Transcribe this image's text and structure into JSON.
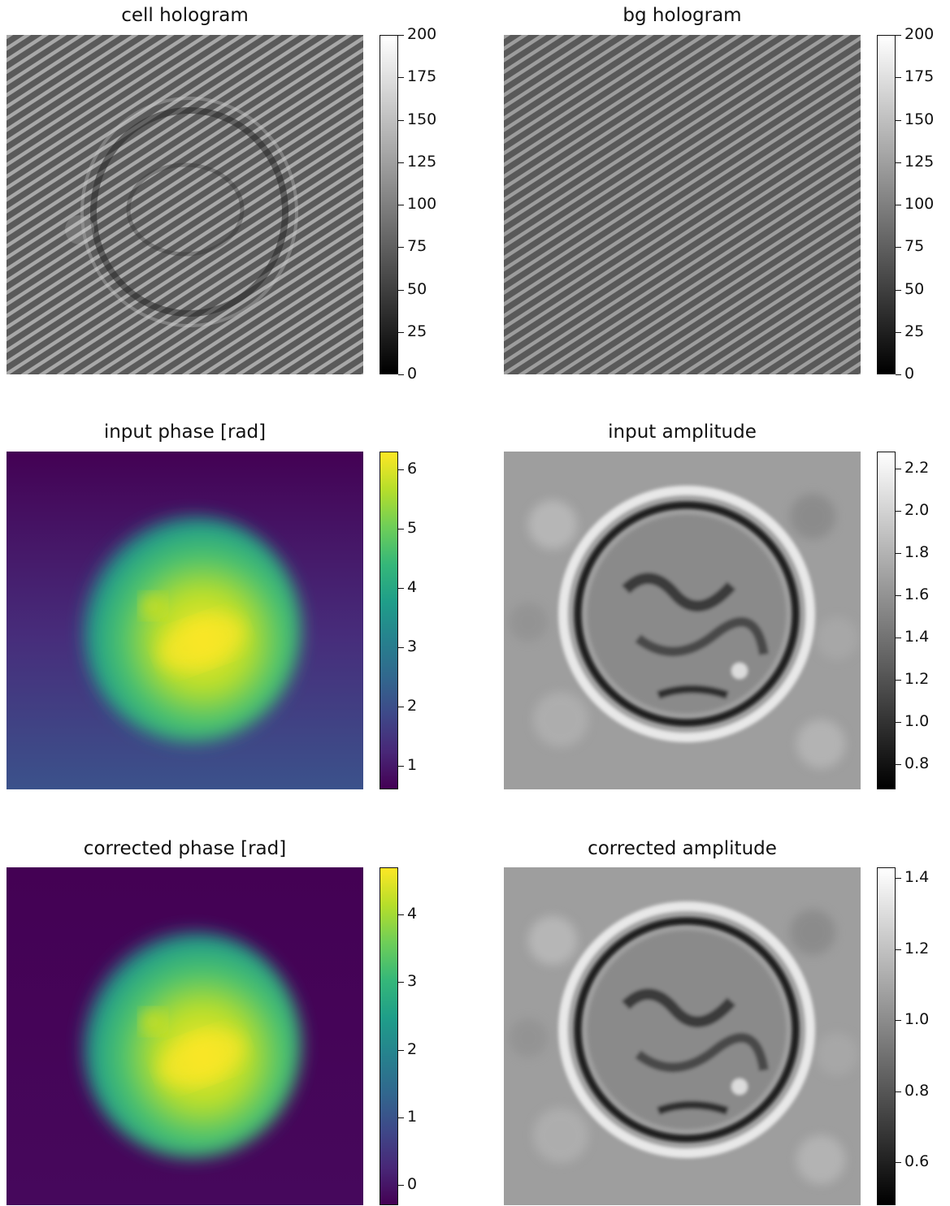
{
  "chart_data": [
    {
      "type": "heatmap",
      "title": "cell hologram",
      "colormap": "gray",
      "colorbar": {
        "vmin": 0,
        "vmax": 200,
        "ticks": [
          0,
          25,
          50,
          75,
          100,
          125,
          150,
          175,
          200
        ],
        "tick_labels": [
          "0",
          "25",
          "50",
          "75",
          "100",
          "125",
          "150",
          "175",
          "200"
        ]
      },
      "content": "interference fringes with ring-shaped cell pattern"
    },
    {
      "type": "heatmap",
      "title": "bg hologram",
      "colormap": "gray",
      "colorbar": {
        "vmin": 0,
        "vmax": 200,
        "ticks": [
          0,
          25,
          50,
          75,
          100,
          125,
          150,
          175,
          200
        ],
        "tick_labels": [
          "0",
          "25",
          "50",
          "75",
          "100",
          "125",
          "150",
          "175",
          "200"
        ]
      },
      "content": "interference fringes without cell"
    },
    {
      "type": "heatmap",
      "title": "input phase [rad]",
      "colormap": "viridis",
      "colorbar": {
        "vmin": 0.6,
        "vmax": 6.3,
        "ticks": [
          1,
          2,
          3,
          4,
          5,
          6
        ],
        "tick_labels": [
          "1",
          "2",
          "3",
          "4",
          "5",
          "6"
        ]
      },
      "content": "bright round cell on dark background with vertical gradient"
    },
    {
      "type": "heatmap",
      "title": "input amplitude",
      "colormap": "gray",
      "colorbar": {
        "vmin": 0.68,
        "vmax": 2.28,
        "ticks": [
          0.8,
          1.0,
          1.2,
          1.4,
          1.6,
          1.8,
          2.0,
          2.2
        ],
        "tick_labels": [
          "0.8",
          "1.0",
          "1.2",
          "1.4",
          "1.6",
          "1.8",
          "2.0",
          "2.2"
        ]
      },
      "content": "ring-shaped cell outline on textured background"
    },
    {
      "type": "heatmap",
      "title": "corrected phase [rad]",
      "colormap": "viridis",
      "colorbar": {
        "vmin": -0.3,
        "vmax": 4.7,
        "ticks": [
          0,
          1,
          2,
          3,
          4
        ],
        "tick_labels": [
          "0",
          "1",
          "2",
          "3",
          "4"
        ]
      },
      "content": "bright round cell on flat dark background"
    },
    {
      "type": "heatmap",
      "title": "corrected amplitude",
      "colormap": "gray",
      "colorbar": {
        "vmin": 0.48,
        "vmax": 1.43,
        "ticks": [
          0.6,
          0.8,
          1.0,
          1.2,
          1.4
        ],
        "tick_labels": [
          "0.6",
          "0.8",
          "1.0",
          "1.2",
          "1.4"
        ]
      },
      "content": "ring-shaped cell outline on textured background"
    }
  ]
}
